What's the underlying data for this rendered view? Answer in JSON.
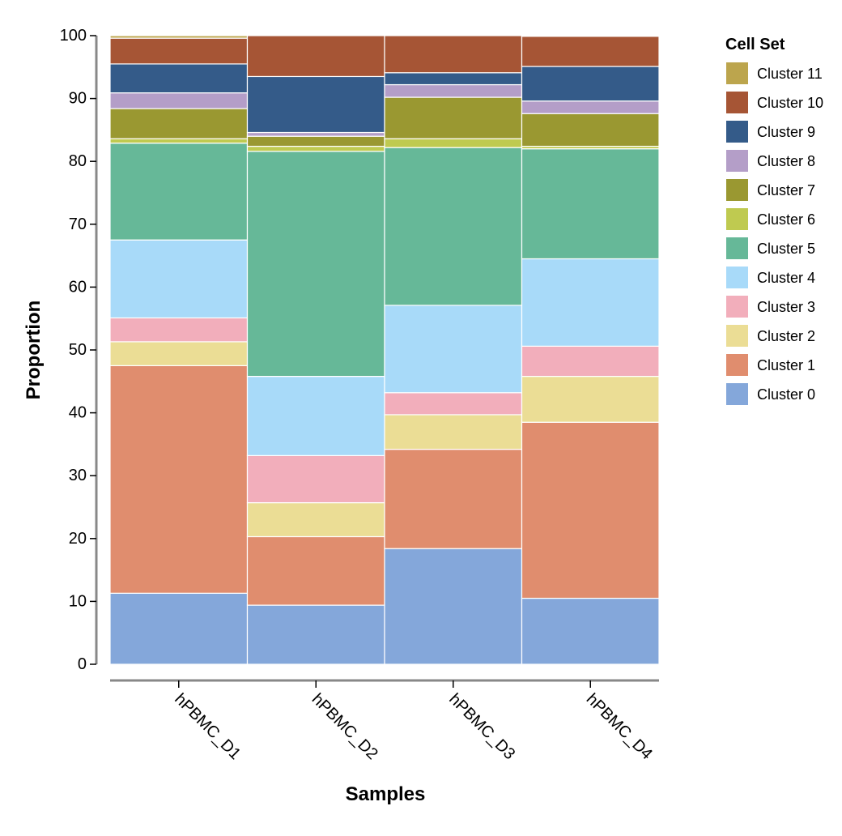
{
  "chart_data": {
    "type": "bar",
    "stacked": true,
    "xlabel": "Samples",
    "ylabel": "Proportion",
    "ylim": [
      0,
      100
    ],
    "yticks": [
      0,
      10,
      20,
      30,
      40,
      50,
      60,
      70,
      80,
      90,
      100
    ],
    "categories": [
      "hPBMC_D1",
      "hPBMC_D2",
      "hPBMC_D3",
      "hPBMC_D4"
    ],
    "legend_title": "Cell Set",
    "legend_position": "right",
    "series": [
      {
        "name": "Cluster 0",
        "color": "#84a7da",
        "values": [
          11.3,
          9.4,
          18.4,
          10.5
        ]
      },
      {
        "name": "Cluster 1",
        "color": "#e08d6e",
        "values": [
          36.2,
          10.9,
          15.8,
          28.0
        ]
      },
      {
        "name": "Cluster 2",
        "color": "#ebdd95",
        "values": [
          3.8,
          5.4,
          5.5,
          7.3
        ]
      },
      {
        "name": "Cluster 3",
        "color": "#f2aebb",
        "values": [
          3.8,
          7.5,
          3.5,
          4.8
        ]
      },
      {
        "name": "Cluster 4",
        "color": "#a8daf9",
        "values": [
          12.4,
          12.6,
          13.9,
          13.9
        ]
      },
      {
        "name": "Cluster 5",
        "color": "#66b898",
        "values": [
          15.4,
          35.8,
          25.1,
          17.5
        ]
      },
      {
        "name": "Cluster 6",
        "color": "#bfca50",
        "values": [
          0.7,
          0.8,
          1.4,
          0.4
        ]
      },
      {
        "name": "Cluster 7",
        "color": "#9a9831",
        "values": [
          4.8,
          1.6,
          6.6,
          5.2
        ]
      },
      {
        "name": "Cluster 8",
        "color": "#b49ec8",
        "values": [
          2.5,
          0.6,
          2.0,
          2.0
        ]
      },
      {
        "name": "Cluster 9",
        "color": "#345b89",
        "values": [
          4.6,
          8.9,
          1.9,
          5.5
        ]
      },
      {
        "name": "Cluster 10",
        "color": "#a65535",
        "values": [
          4.1,
          6.5,
          5.9,
          4.8
        ]
      },
      {
        "name": "Cluster 11",
        "color": "#bca54d",
        "values": [
          0.4,
          0.0,
          0.0,
          0.1
        ]
      }
    ]
  }
}
